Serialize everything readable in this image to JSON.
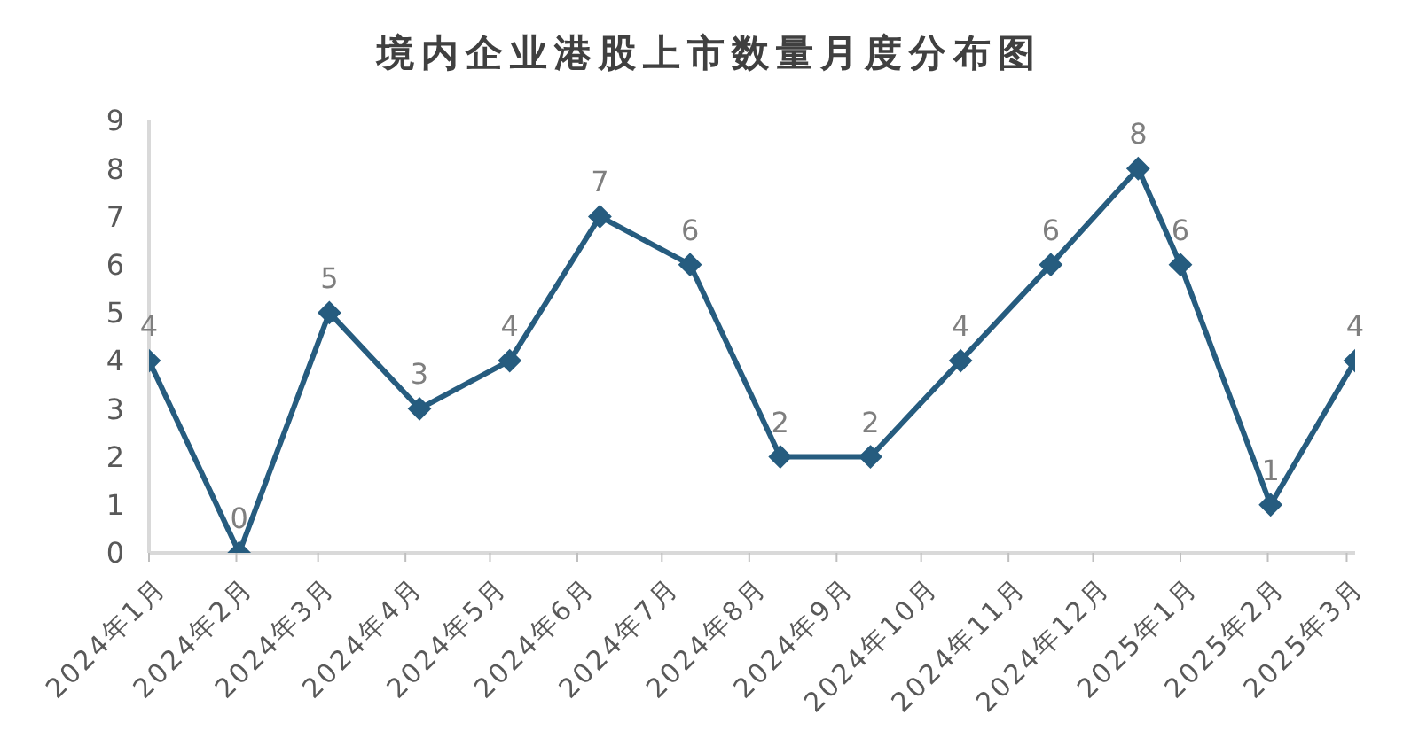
{
  "chart_data": {
    "type": "line",
    "title": "境内企业港股上市数量月度分布图",
    "x": [
      "2024-01-01",
      "2024-02-02",
      "2024-03-05",
      "2024-04-06",
      "2024-05-08",
      "2024-06-09",
      "2024-07-11",
      "2024-08-12",
      "2024-09-13",
      "2024-10-15",
      "2024-11-16",
      "2024-12-17",
      "2025-01-01",
      "2025-02-02",
      "2025-03-04"
    ],
    "values": [
      4,
      0,
      5,
      3,
      4,
      7,
      6,
      2,
      2,
      4,
      6,
      8,
      6,
      1,
      4
    ],
    "color": "#265c7f",
    "xlim": [
      "2024-01-01",
      "2025-03-04"
    ],
    "xticks": [
      {
        "value": "2024-01-01",
        "label": "2024年1月"
      },
      {
        "value": "2024-02-01",
        "label": "2024年2月"
      },
      {
        "value": "2024-03-01",
        "label": "2024年3月"
      },
      {
        "value": "2024-04-01",
        "label": "2024年4月"
      },
      {
        "value": "2024-05-01",
        "label": "2024年5月"
      },
      {
        "value": "2024-06-01",
        "label": "2024年6月"
      },
      {
        "value": "2024-07-01",
        "label": "2024年7月"
      },
      {
        "value": "2024-08-01",
        "label": "2024年8月"
      },
      {
        "value": "2024-09-01",
        "label": "2024年9月"
      },
      {
        "value": "2024-10-01",
        "label": "2024年10月"
      },
      {
        "value": "2024-11-01",
        "label": "2024年11月"
      },
      {
        "value": "2024-12-01",
        "label": "2024年12月"
      },
      {
        "value": "2025-01-01",
        "label": "2025年1月"
      },
      {
        "value": "2025-02-01",
        "label": "2025年2月"
      },
      {
        "value": "2025-03-01",
        "label": "2025年3月"
      }
    ],
    "ylim": [
      0,
      9
    ],
    "yticks": [
      0,
      1,
      2,
      3,
      4,
      5,
      6,
      7,
      8,
      9
    ],
    "marker": "diamond",
    "line_style": "solid",
    "data_labels": true
  }
}
